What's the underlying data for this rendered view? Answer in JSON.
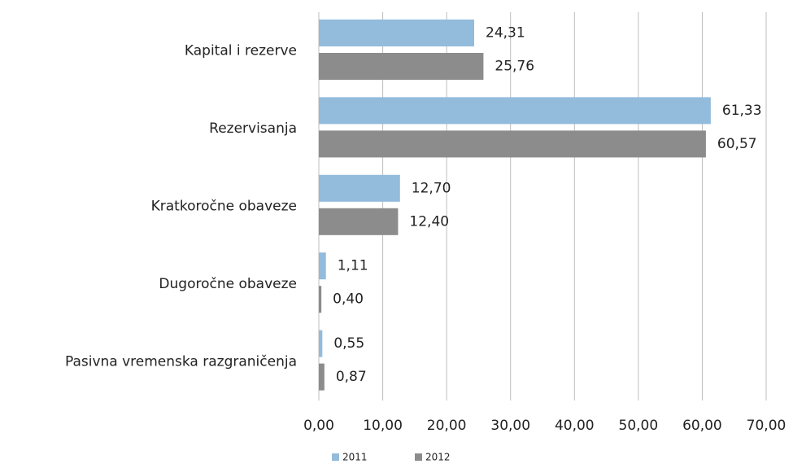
{
  "chart_data": {
    "type": "hbar",
    "categories": [
      "Kapital i rezerve",
      "Rezervisanja",
      "Kratkoročne obaveze",
      "Dugoročne obaveze",
      "Pasivna vremenska razgraničenja"
    ],
    "series": [
      {
        "name": "2011",
        "color": "#93bbdc",
        "values": [
          24.31,
          61.33,
          12.7,
          1.11,
          0.55
        ],
        "value_labels": [
          "24,31",
          "61,33",
          "12,70",
          "1,11",
          "0,55"
        ]
      },
      {
        "name": "2012",
        "color": "#8c8c8c",
        "values": [
          25.76,
          60.57,
          12.4,
          0.4,
          0.87
        ],
        "value_labels": [
          "25,76",
          "60,57",
          "12,40",
          "0,40",
          "0,87"
        ]
      }
    ],
    "xlim": [
      0,
      70
    ],
    "xticks": [
      {
        "value": 0,
        "label": "0,00"
      },
      {
        "value": 10,
        "label": "10,00"
      },
      {
        "value": 20,
        "label": "20,00"
      },
      {
        "value": 30,
        "label": "30,00"
      },
      {
        "value": 40,
        "label": "40,00"
      },
      {
        "value": 50,
        "label": "50,00"
      },
      {
        "value": 60,
        "label": "60,00"
      },
      {
        "value": 70,
        "label": "70,00"
      }
    ],
    "grid": true,
    "legend": "bottom"
  }
}
